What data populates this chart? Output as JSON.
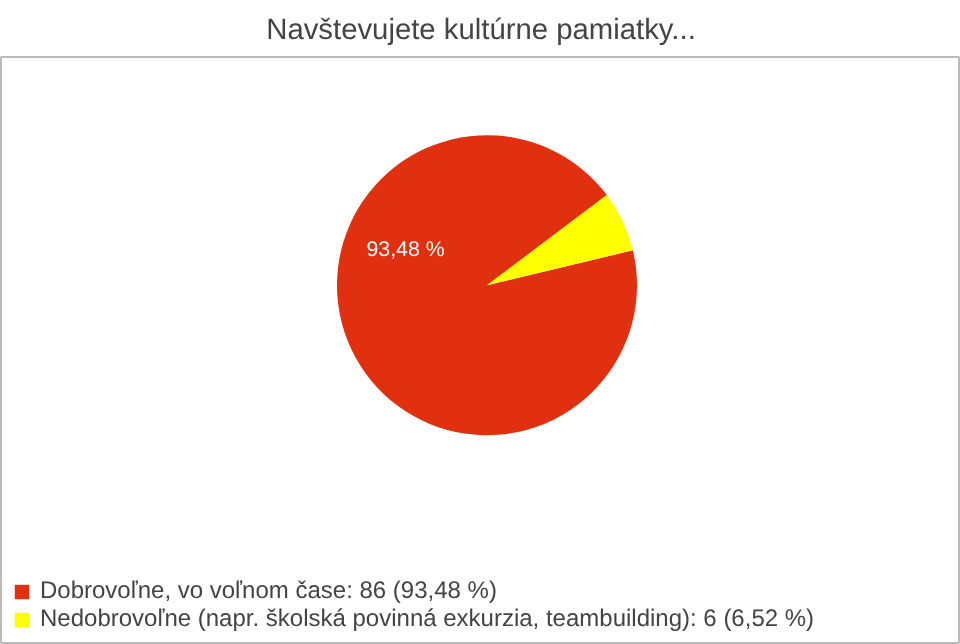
{
  "chart_data": {
    "type": "pie",
    "title": "Navštevujete kultúrne pamiatky...",
    "categories": [
      "Dobrovoľne, vo voľnom čase: 86 (93,48 %)",
      "Nedobrovoľne (napr. školská povinná exkurzia, teambuilding): 6 (6,52 %)"
    ],
    "values": [
      93.48,
      6.52
    ],
    "colors": [
      "#e0300f",
      "#ffff00"
    ],
    "value_labels": [
      "93,48 %",
      null
    ],
    "legend": "bottom left"
  }
}
